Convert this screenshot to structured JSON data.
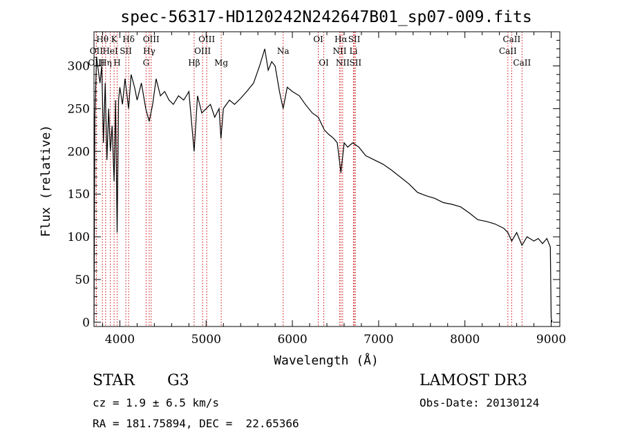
{
  "chart_data": {
    "type": "line",
    "title": "spec-56317-HD120242N242647B01_sp07-009.fits",
    "xlabel": "Wavelength (Å)",
    "ylabel": "Flux (relative)",
    "xlim": [
      3700,
      9100
    ],
    "ylim": [
      -5,
      340
    ],
    "x_ticks": [
      4000,
      5000,
      6000,
      7000,
      8000,
      9000
    ],
    "y_ticks": [
      0,
      50,
      100,
      150,
      200,
      250,
      300
    ],
    "grid": false,
    "series": [
      {
        "x": [
          3700,
          3710,
          3730,
          3750,
          3770,
          3790,
          3810,
          3830,
          3850,
          3870,
          3890,
          3910,
          3933,
          3950,
          3968,
          3985,
          4000,
          4030,
          4060,
          4101,
          4130,
          4170,
          4200,
          4250,
          4300,
          4340,
          4380,
          4420,
          4470,
          4520,
          4570,
          4620,
          4680,
          4740,
          4800,
          4861,
          4900,
          4950,
          5000,
          5050,
          5100,
          5150,
          5172,
          5200,
          5270,
          5330,
          5400,
          5470,
          5550,
          5620,
          5680,
          5720,
          5760,
          5800,
          5850,
          5893,
          5940,
          6000,
          6080,
          6150,
          6230,
          6300,
          6370,
          6420,
          6480,
          6520,
          6563,
          6600,
          6640,
          6700,
          6770,
          6850,
          6950,
          7050,
          7150,
          7250,
          7350,
          7450,
          7550,
          7650,
          7750,
          7850,
          7950,
          8050,
          8150,
          8250,
          8350,
          8450,
          8498,
          8542,
          8600,
          8662,
          8720,
          8800,
          8850,
          8900,
          8950,
          8990,
          9000,
          9010
        ],
        "y": [
          0,
          240,
          310,
          295,
          280,
          300,
          210,
          280,
          190,
          250,
          200,
          230,
          165,
          260,
          105,
          260,
          275,
          255,
          285,
          250,
          290,
          275,
          260,
          280,
          250,
          235,
          255,
          285,
          265,
          270,
          260,
          255,
          265,
          260,
          270,
          200,
          265,
          245,
          250,
          255,
          240,
          250,
          215,
          250,
          260,
          255,
          262,
          270,
          280,
          300,
          320,
          295,
          305,
          300,
          270,
          250,
          275,
          270,
          265,
          255,
          245,
          240,
          225,
          220,
          215,
          210,
          175,
          210,
          205,
          210,
          205,
          195,
          190,
          185,
          178,
          170,
          162,
          152,
          148,
          145,
          140,
          138,
          135,
          128,
          120,
          118,
          115,
          110,
          105,
          95,
          105,
          90,
          100,
          95,
          98,
          92,
          98,
          88,
          5,
          0
        ]
      }
    ],
    "line_markers": [
      {
        "label": "OII",
        "wavelength": 3727,
        "row": 1
      },
      {
        "label": "Hθ",
        "wavelength": 3798,
        "row": 0
      },
      {
        "label": "OIII",
        "wavelength": 3727,
        "row": 2
      },
      {
        "label": "Hη",
        "wavelength": 3835,
        "row": 2
      },
      {
        "label": "HeI",
        "wavelength": 3889,
        "row": 1
      },
      {
        "label": "K",
        "wavelength": 3933,
        "row": 0
      },
      {
        "label": "SII",
        "wavelength": 4069,
        "row": 1
      },
      {
        "label": "H",
        "wavelength": 3968,
        "row": 2
      },
      {
        "label": "Hδ",
        "wavelength": 4101,
        "row": 0
      },
      {
        "label": "OIII",
        "wavelength": 4363,
        "row": 0
      },
      {
        "label": "Hγ",
        "wavelength": 4340,
        "row": 1
      },
      {
        "label": "G",
        "wavelength": 4304,
        "row": 2
      },
      {
        "label": "Hβ",
        "wavelength": 4861,
        "row": 2
      },
      {
        "label": "OIII",
        "wavelength": 5007,
        "row": 0
      },
      {
        "label": "OIII",
        "wavelength": 4959,
        "row": 1
      },
      {
        "label": "Mg",
        "wavelength": 5175,
        "row": 2
      },
      {
        "label": "Na",
        "wavelength": 5893,
        "row": 1
      },
      {
        "label": "OI",
        "wavelength": 6300,
        "row": 0
      },
      {
        "label": "OI",
        "wavelength": 6364,
        "row": 2
      },
      {
        "label": "Hα",
        "wavelength": 6563,
        "row": 0
      },
      {
        "label": "SII",
        "wavelength": 6717,
        "row": 0
      },
      {
        "label": "NII",
        "wavelength": 6548,
        "row": 1
      },
      {
        "label": "Li",
        "wavelength": 6708,
        "row": 1
      },
      {
        "label": "NII",
        "wavelength": 6583,
        "row": 2
      },
      {
        "label": "SII",
        "wavelength": 6731,
        "row": 2
      },
      {
        "label": "CaII",
        "wavelength": 8542,
        "row": 0
      },
      {
        "label": "CaII",
        "wavelength": 8498,
        "row": 1
      },
      {
        "label": "CaII",
        "wavelength": 8662,
        "row": 2
      }
    ],
    "marker_color": "#cc0000",
    "line_color": "#000000"
  },
  "info": {
    "object_type": "STAR",
    "spectral_class": "G3",
    "survey": "LAMOST DR3",
    "cz_text": "cz = 1.9 ± 6.5 km/s",
    "obs_date_text": "Obs-Date: 20130124",
    "coords_text": "RA = 181.75894, DEC =  22.65366"
  }
}
